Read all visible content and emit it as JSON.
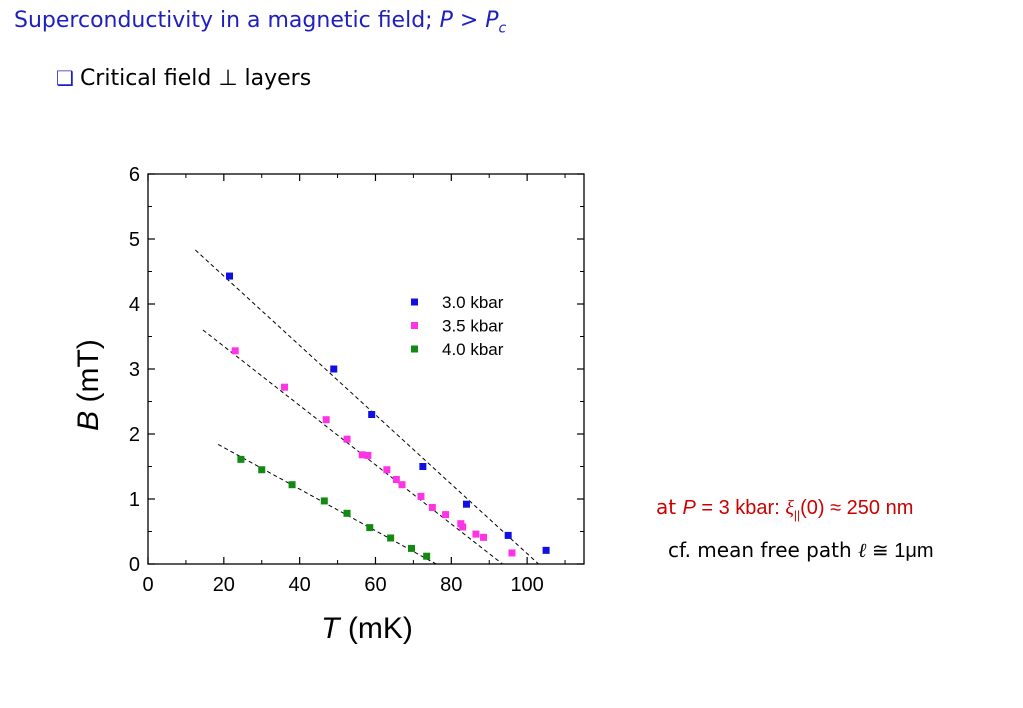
{
  "slide": {
    "title_main": "Superconductivity in a magnetic field;  ",
    "title_p": "P",
    "title_gt": " > ",
    "title_pc": "P",
    "title_pc_sub": "c",
    "bullet_icon": "checkbox-icon",
    "bullet_text": "Critical field ⊥ layers",
    "note_at": "at  ",
    "note_p": "P",
    "note_rest": " = 3 kbar:   ",
    "note_xi": "ξ",
    "note_xi_sub": "||",
    "note_value": "(0) ≈ 250 nm",
    "note2_prefix": "cf. mean free path  ",
    "note2_ell": "ℓ",
    "note2_rest": " ≅ 1μm",
    "colors": {
      "title": "#1f1fbf",
      "note": "#cc0000"
    }
  },
  "chart_data": {
    "type": "scatter",
    "title": "",
    "xlabel_var": "T",
    "xlabel_unit": " (mK)",
    "ylabel_var": "B",
    "ylabel_unit": " (mT)",
    "xlim": [
      0,
      115
    ],
    "ylim": [
      0,
      6
    ],
    "xticks": [
      0,
      20,
      40,
      60,
      80,
      100
    ],
    "yticks": [
      0,
      1,
      2,
      3,
      4,
      5,
      6
    ],
    "grid": false,
    "legend_position": "upper-right",
    "series": [
      {
        "name": "3.0 kbar",
        "color": "#1010e0",
        "points": [
          [
            21.5,
            4.43
          ],
          [
            49,
            3.0
          ],
          [
            59,
            2.3
          ],
          [
            72.5,
            1.5
          ],
          [
            84,
            0.92
          ],
          [
            95,
            0.44
          ],
          [
            105,
            0.21
          ]
        ],
        "fit": [
          [
            12.5,
            4.83
          ],
          [
            103,
            0.0
          ]
        ]
      },
      {
        "name": "3.5 kbar",
        "color": "#ff33e6",
        "points": [
          [
            23,
            3.28
          ],
          [
            36,
            2.72
          ],
          [
            47,
            2.22
          ],
          [
            52.5,
            1.92
          ],
          [
            56.5,
            1.68
          ],
          [
            58,
            1.67
          ],
          [
            63,
            1.45
          ],
          [
            65.5,
            1.3
          ],
          [
            67,
            1.22
          ],
          [
            72,
            1.04
          ],
          [
            75,
            0.87
          ],
          [
            78.5,
            0.76
          ],
          [
            82.5,
            0.62
          ],
          [
            83,
            0.57
          ],
          [
            86.5,
            0.46
          ],
          [
            88.5,
            0.41
          ],
          [
            96,
            0.17
          ]
        ],
        "fit": [
          [
            14.5,
            3.6
          ],
          [
            93.5,
            0.0
          ]
        ]
      },
      {
        "name": "4.0 kbar",
        "color": "#128a12",
        "points": [
          [
            24.5,
            1.61
          ],
          [
            30,
            1.45
          ],
          [
            38,
            1.22
          ],
          [
            46.5,
            0.97
          ],
          [
            52.5,
            0.78
          ],
          [
            58.5,
            0.56
          ],
          [
            64,
            0.4
          ],
          [
            69.5,
            0.24
          ],
          [
            73.5,
            0.12
          ]
        ],
        "fit": [
          [
            18.5,
            1.84
          ],
          [
            76,
            0.0
          ]
        ]
      }
    ]
  }
}
